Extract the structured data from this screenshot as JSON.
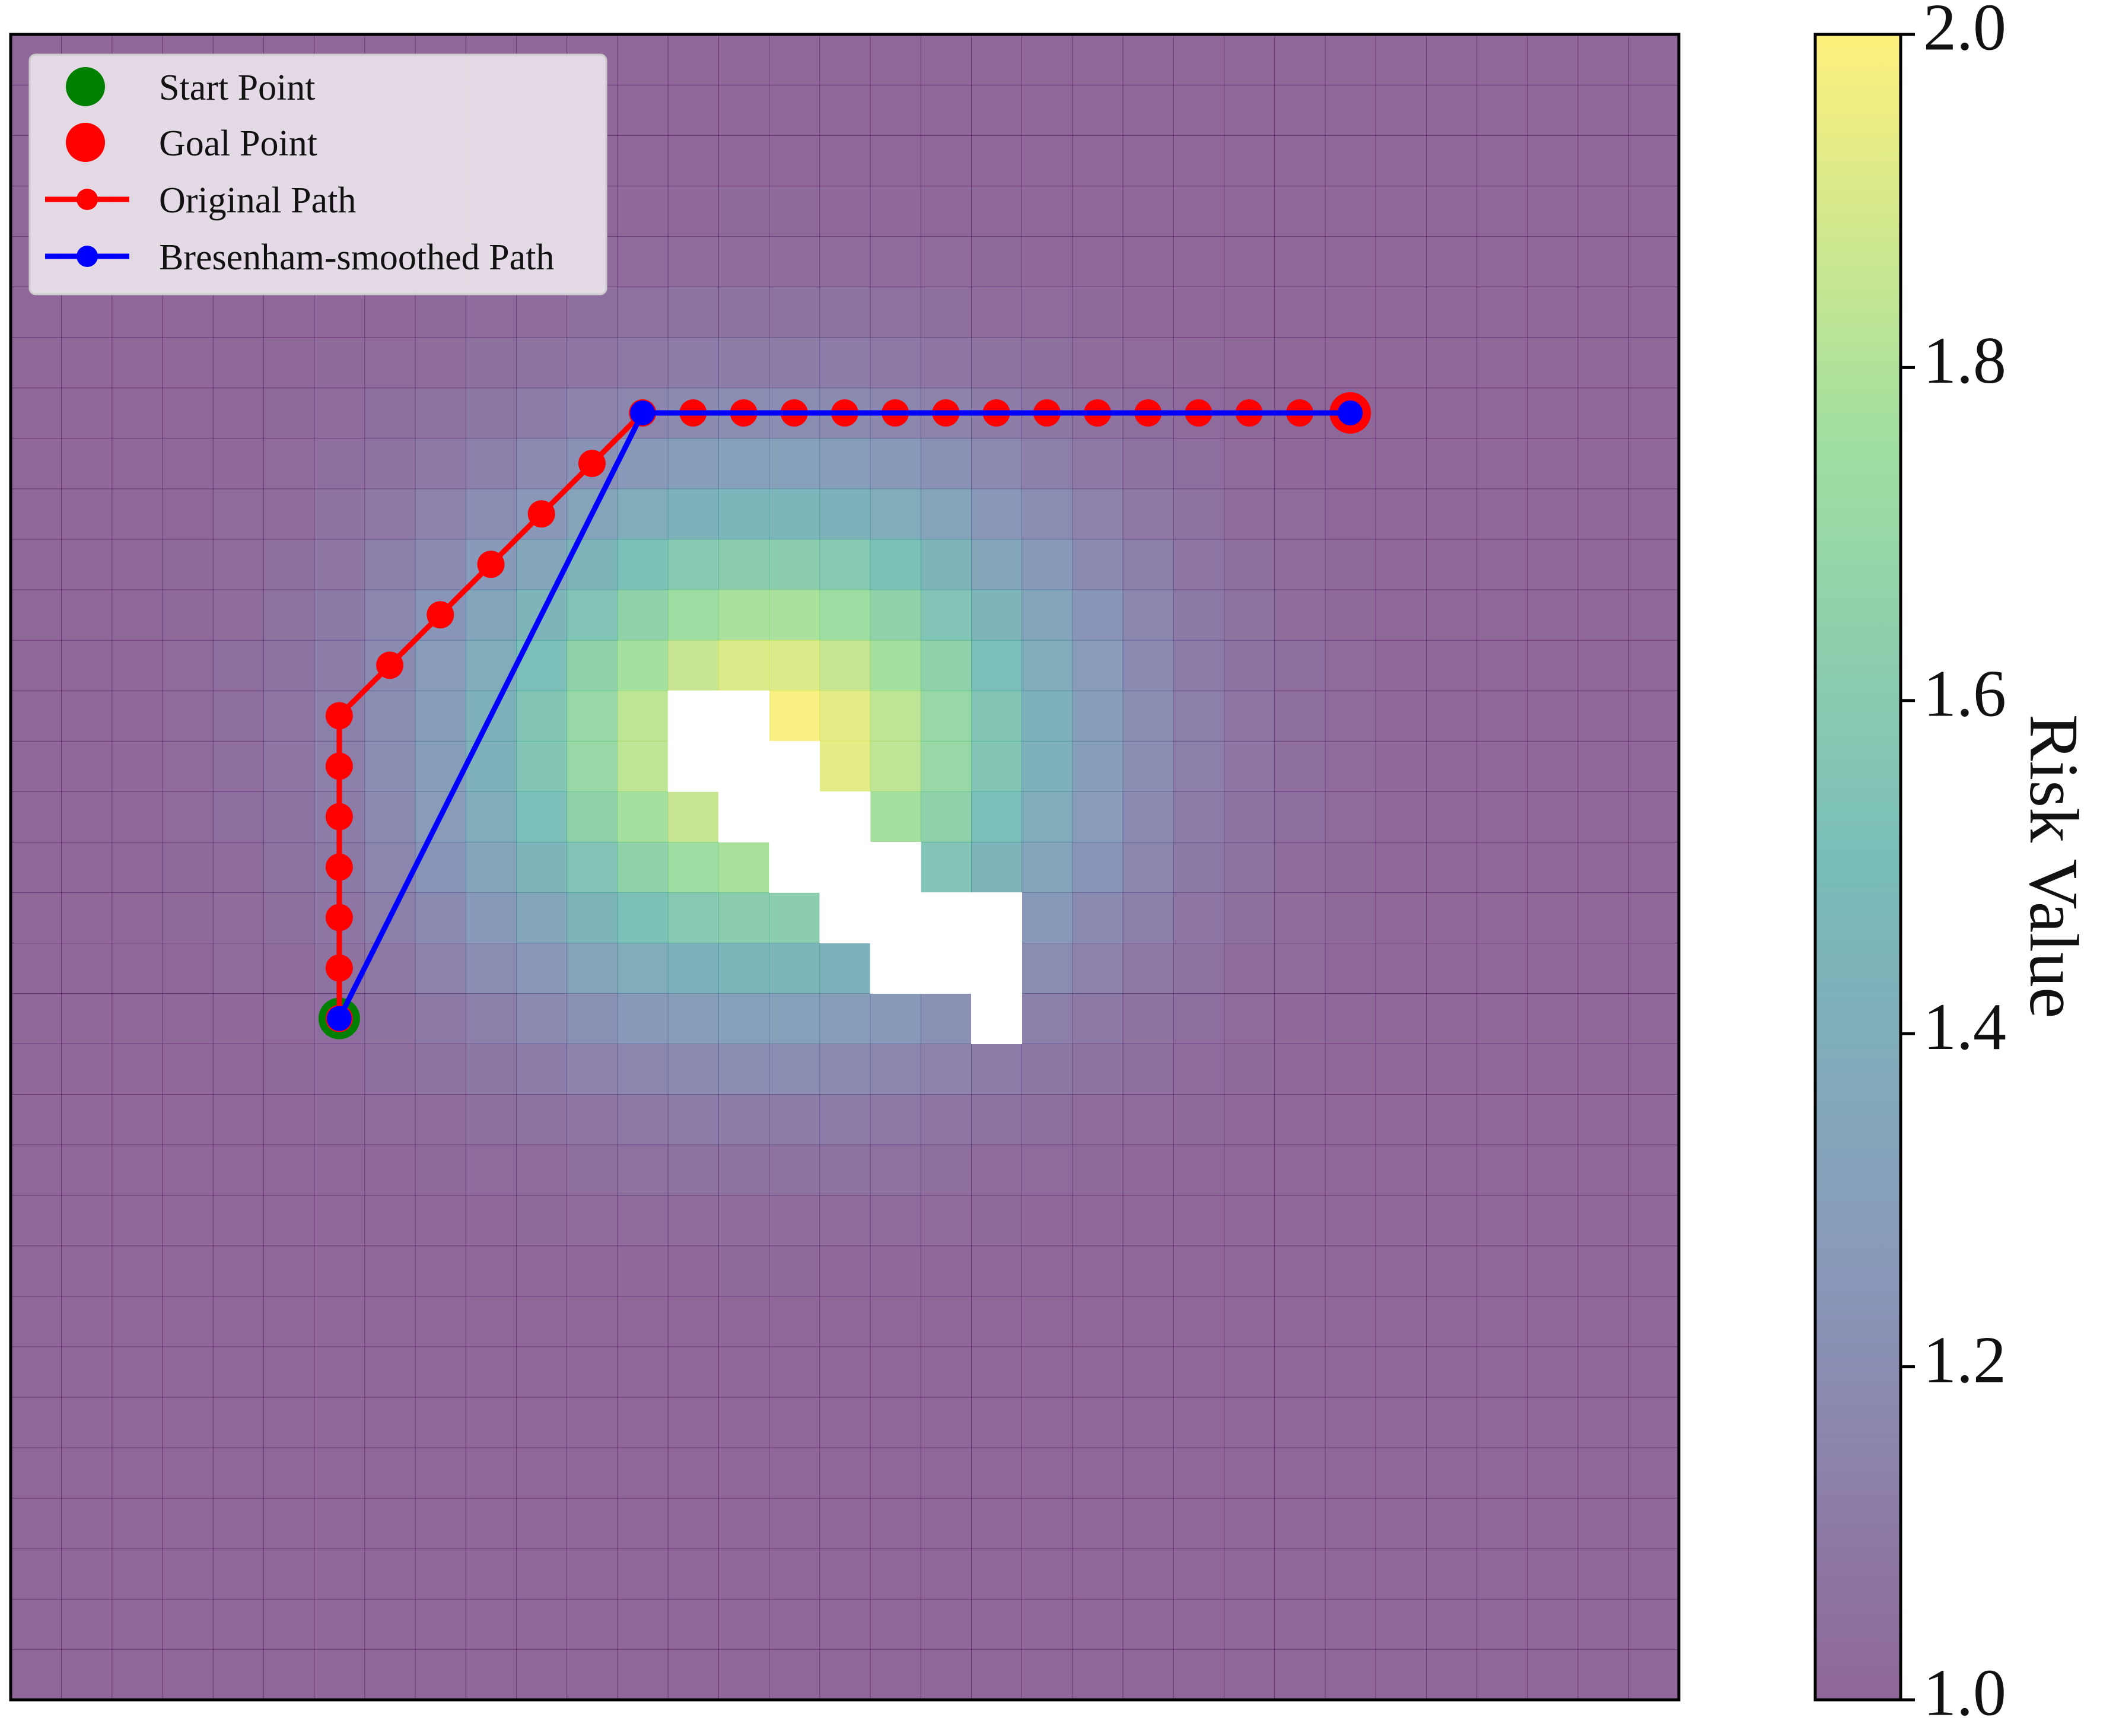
{
  "chart_data": {
    "type": "heatmap",
    "title": "",
    "xlabel": "",
    "ylabel": "",
    "grid": false,
    "axes_ticks_visible": false,
    "grid_size": [
      33,
      33
    ],
    "heatmap": {
      "description_of_values": "risk value per cell, gaussian-like field peaking near the obstacle",
      "center": [
        14.5,
        13.5
      ],
      "sigma": [
        4.2,
        3.6
      ],
      "min": 1.0,
      "max": 2.0,
      "alpha": 0.6,
      "obstacle_cells": [
        [
          13,
          13
        ],
        [
          14,
          13
        ],
        [
          13,
          14
        ],
        [
          14,
          14
        ],
        [
          15,
          14
        ],
        [
          14,
          15
        ],
        [
          15,
          15
        ],
        [
          16,
          15
        ],
        [
          15,
          16
        ],
        [
          16,
          16
        ],
        [
          17,
          16
        ],
        [
          16,
          17
        ],
        [
          17,
          17
        ],
        [
          18,
          17
        ],
        [
          17,
          18
        ],
        [
          18,
          18
        ],
        [
          19,
          17
        ],
        [
          19,
          18
        ],
        [
          19,
          19
        ]
      ],
      "obstacle_color": "#ffffff"
    },
    "colorbar": {
      "label": "Risk Value",
      "range": [
        1.0,
        2.0
      ],
      "ticks": [
        "1.0",
        "1.2",
        "1.4",
        "1.6",
        "1.8",
        "2.0"
      ],
      "colormap": [
        "#440154",
        "#3b528b",
        "#21918c",
        "#5ec962",
        "#fde725"
      ]
    },
    "series": [
      {
        "name": "Original Path",
        "color": "#ff0000",
        "marker": "circle",
        "points": [
          [
            6,
            19
          ],
          [
            6,
            18
          ],
          [
            6,
            17
          ],
          [
            6,
            16
          ],
          [
            6,
            15
          ],
          [
            6,
            14
          ],
          [
            6,
            13
          ],
          [
            7,
            12
          ],
          [
            8,
            11
          ],
          [
            9,
            10
          ],
          [
            10,
            9
          ],
          [
            11,
            8
          ],
          [
            12,
            7
          ],
          [
            13,
            7
          ],
          [
            14,
            7
          ],
          [
            15,
            7
          ],
          [
            16,
            7
          ],
          [
            17,
            7
          ],
          [
            18,
            7
          ],
          [
            19,
            7
          ],
          [
            20,
            7
          ],
          [
            21,
            7
          ],
          [
            22,
            7
          ],
          [
            23,
            7
          ],
          [
            24,
            7
          ],
          [
            25,
            7
          ],
          [
            26,
            7
          ]
        ]
      },
      {
        "name": "Bresenham-smoothed Path",
        "color": "#0000ff",
        "marker": "circle",
        "points": [
          [
            6,
            19
          ],
          [
            12,
            7
          ],
          [
            26,
            7
          ]
        ]
      }
    ],
    "start_point": {
      "name": "Start Point",
      "cell": [
        6,
        19
      ],
      "color": "#008000"
    },
    "goal_point": {
      "name": "Goal Point",
      "cell": [
        26,
        7
      ],
      "color": "#ff0000"
    },
    "legend": {
      "placement": "top-left",
      "entries": [
        "Start Point",
        "Goal Point",
        "Original Path",
        "Bresenham-smoothed Path"
      ]
    }
  }
}
